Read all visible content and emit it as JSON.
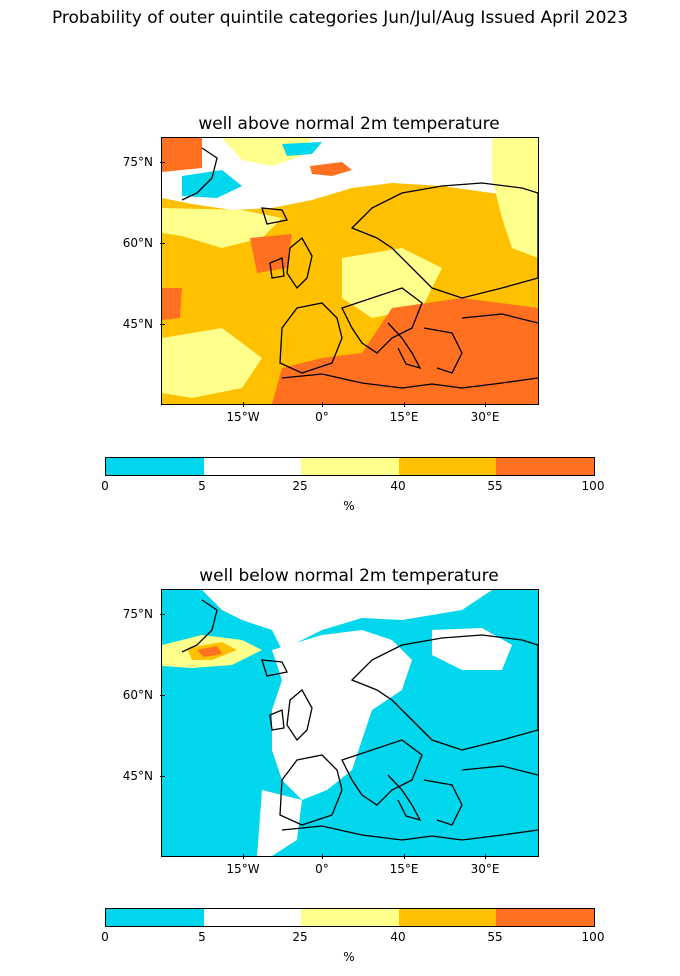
{
  "suptitle": "Probability of outer quintile categories Jun/Jul/Aug Issued April 2023",
  "maps": [
    {
      "title": "well above normal 2m temperature"
    },
    {
      "title": "well below normal 2m temperature"
    }
  ],
  "lat_ticks": [
    "75°N",
    "60°N",
    "45°N"
  ],
  "lon_ticks": [
    "15°W",
    "0°",
    "15°E",
    "30°E"
  ],
  "colorbar": {
    "boundaries": [
      "0",
      "5",
      "25",
      "40",
      "55",
      "100"
    ],
    "colors": [
      "#00d6ec",
      "#ffffff",
      "#ffff8c",
      "#ffc000",
      "#ff7020"
    ],
    "unit": "%"
  }
}
